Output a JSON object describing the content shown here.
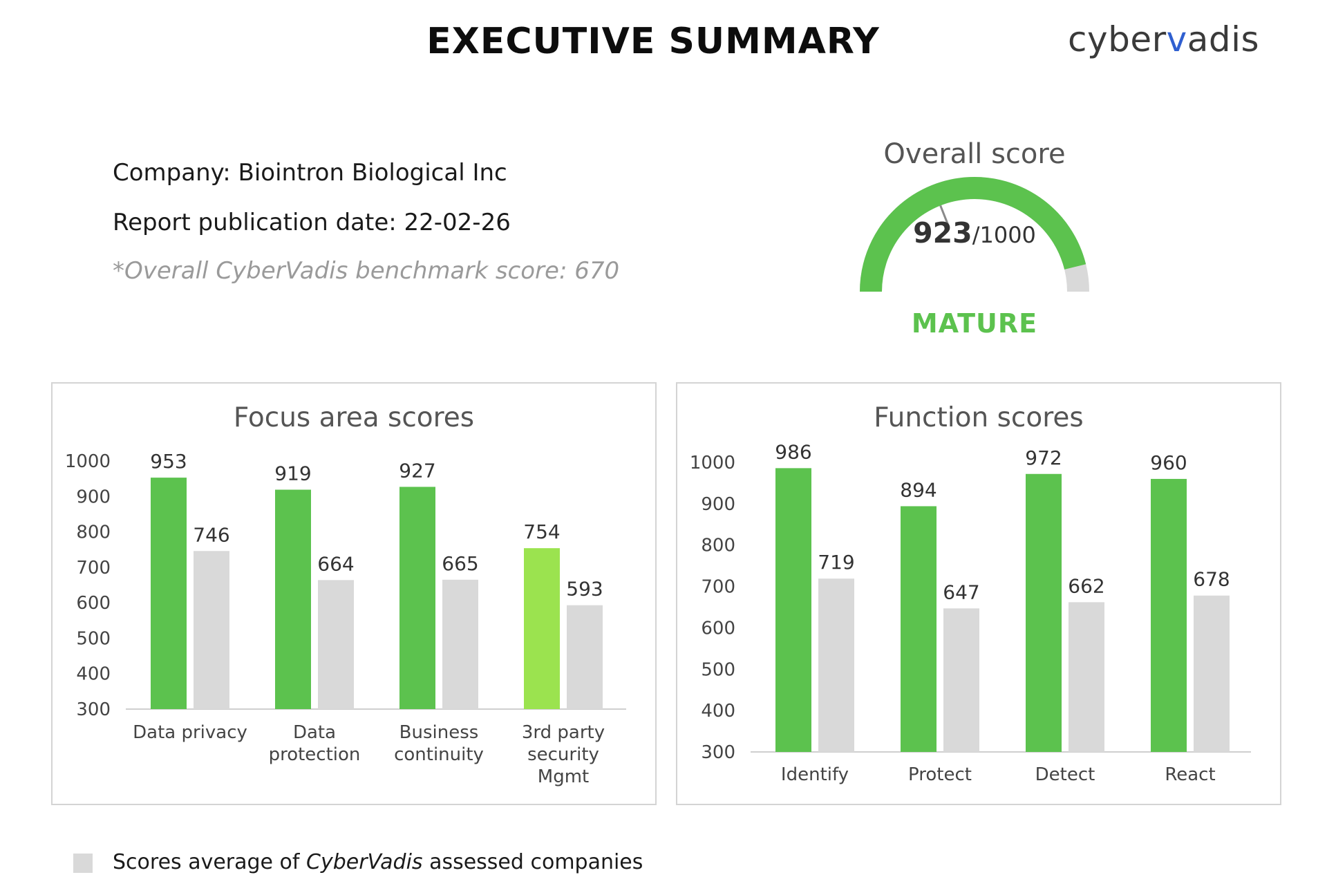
{
  "header": {
    "title": "EXECUTIVE SUMMARY",
    "logo_text_left": "cyber",
    "logo_mark": "v",
    "logo_text_right": "adis"
  },
  "company_info": {
    "company": "Company: Biointron Biological Inc",
    "publication_date": "Report publication date: 22-02-26",
    "benchmark": "*Overall CyberVadis benchmark score: 670"
  },
  "overall": {
    "title": "Overall score",
    "score": "923",
    "max": "/1000",
    "score_value": 923,
    "max_value": 1000,
    "level": "MATURE"
  },
  "colors": {
    "green": "#5cc24e",
    "light_green": "#9be34f",
    "grey": "#d9d9d9",
    "benchmark_logo": "#2f5fd0"
  },
  "legend": {
    "before": "Scores average of ",
    "italic": "CyberVadis",
    "after": " assessed companies"
  },
  "chart_data": [
    {
      "type": "bar",
      "title": "Focus area scores",
      "categories": [
        [
          "Data privacy"
        ],
        [
          "Data",
          "protection"
        ],
        [
          "Business",
          "continuity"
        ],
        [
          "3rd party",
          "security",
          "Mgmt"
        ]
      ],
      "yticks": [
        "1000",
        "900",
        "800",
        "700",
        "600",
        "500",
        "400",
        "300"
      ],
      "ylim": [
        300,
        1000
      ],
      "series": [
        {
          "values": [
            953,
            919,
            927,
            754
          ],
          "colors": [
            "#5cc24e",
            "#5cc24e",
            "#5cc24e",
            "#9be34f"
          ]
        },
        {
          "name": "Scores average of CyberVadis assessed companies",
          "values": [
            746,
            664,
            665,
            593
          ],
          "colors": [
            "#d9d9d9",
            "#d9d9d9",
            "#d9d9d9",
            "#d9d9d9"
          ]
        }
      ],
      "grid": false
    },
    {
      "type": "bar",
      "title": "Function scores",
      "categories": [
        [
          "Identify"
        ],
        [
          "Protect"
        ],
        [
          "Detect"
        ],
        [
          "React"
        ]
      ],
      "yticks": [
        "1000",
        "900",
        "800",
        "700",
        "600",
        "500",
        "400",
        "300"
      ],
      "ylim": [
        300,
        1000
      ],
      "series": [
        {
          "values": [
            986,
            894,
            972,
            960
          ],
          "colors": [
            "#5cc24e",
            "#5cc24e",
            "#5cc24e",
            "#5cc24e"
          ]
        },
        {
          "name": "Scores average of CyberVadis assessed companies",
          "values": [
            719,
            647,
            662,
            678
          ],
          "colors": [
            "#d9d9d9",
            "#d9d9d9",
            "#d9d9d9",
            "#d9d9d9"
          ]
        }
      ],
      "grid": false
    }
  ]
}
